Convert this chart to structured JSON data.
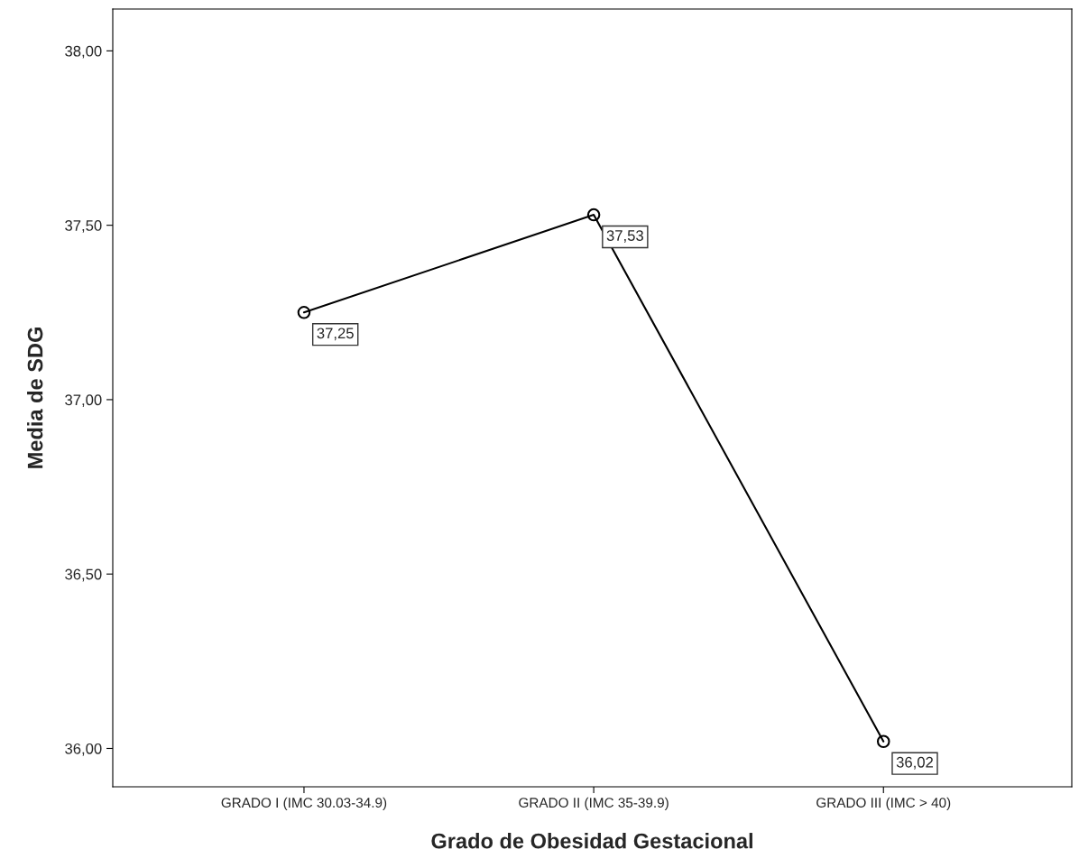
{
  "chart_data": {
    "type": "line",
    "xlabel": "Grado de Obesidad Gestacional",
    "ylabel": "Media de SDG",
    "categories": [
      "GRADO I (IMC 30.03-34.9)",
      "GRADO II (IMC 35-39.9)",
      "GRADO III (IMC > 40)"
    ],
    "series": [
      {
        "color": "#000000",
        "values": [
          37.25,
          37.53,
          36.02
        ],
        "value_labels": [
          "37,25",
          "37,53",
          "36,02"
        ]
      }
    ],
    "ylim": [
      35.89,
      38.12
    ],
    "yticks": [
      {
        "value": 36,
        "label": "36,00"
      },
      {
        "value": 36.5,
        "label": "36,50"
      },
      {
        "value": 37,
        "label": "37,00"
      },
      {
        "value": 37.5,
        "label": "37,50"
      },
      {
        "value": 38,
        "label": "38,00"
      }
    ],
    "marker": "circle",
    "line_style": "solid",
    "grid": false
  }
}
